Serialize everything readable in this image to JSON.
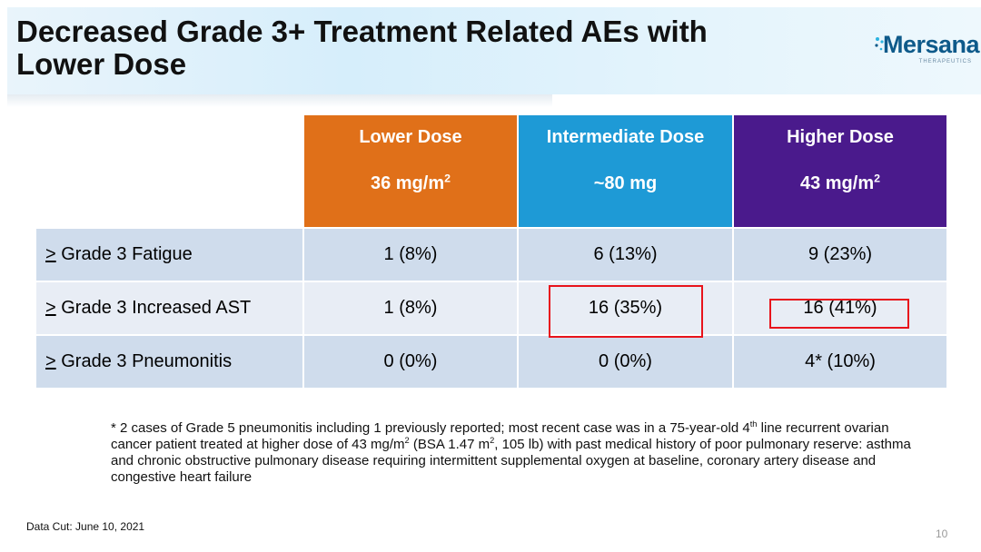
{
  "slide": {
    "title_line1": "Decreased Grade 3+ Treatment Related AEs with",
    "title_line2": "Lower Dose",
    "logo": {
      "word": "Mersana",
      "sub": "THERAPEUTICS",
      "color": "#0e5a8a"
    },
    "page_number": "10",
    "data_cut": "Data Cut: June 10, 2021"
  },
  "table": {
    "columns": [
      {
        "name": "Lower Dose",
        "value": "36 mg/m",
        "sup": "2",
        "color": "#e07019"
      },
      {
        "name": "Intermediate Dose",
        "value": "~80 mg",
        "sup": "",
        "color": "#1e9ad6"
      },
      {
        "name": "Higher Dose",
        "value": "43 mg/m",
        "sup": "2",
        "color": "#4a1a8c"
      }
    ],
    "rows": [
      {
        "prefix": ">",
        "label": " Grade 3 Fatigue",
        "values": [
          "1   (8%)",
          "6  (13%)",
          "9  (23%)"
        ]
      },
      {
        "prefix": ">",
        "label": " Grade 3 Increased AST",
        "values": [
          "1   (8%)",
          "16 (35%)",
          "16 (41%)"
        ]
      },
      {
        "prefix": ">",
        "label": " Grade 3 Pneumonitis",
        "values": [
          "0   (0%)",
          "0   (0%)",
          "4*  (10%)"
        ]
      }
    ],
    "highlight_color": "#e8141c"
  },
  "footnote": {
    "p1": "* 2 cases of Grade 5 pneumonitis including 1 previously reported; most recent case was in a 75-year-old 4",
    "sup1": "th",
    "p2": " line recurrent ovarian cancer patient treated at higher dose of 43 mg/m",
    "sup2": "2",
    "p3": " (BSA 1.47 m",
    "sup3": "2",
    "p4": ", 105 lb) with past medical history of poor pulmonary reserve: asthma and chronic obstructive pulmonary disease requiring intermittent supplemental oxygen at baseline, coronary artery disease and congestive heart failure"
  }
}
